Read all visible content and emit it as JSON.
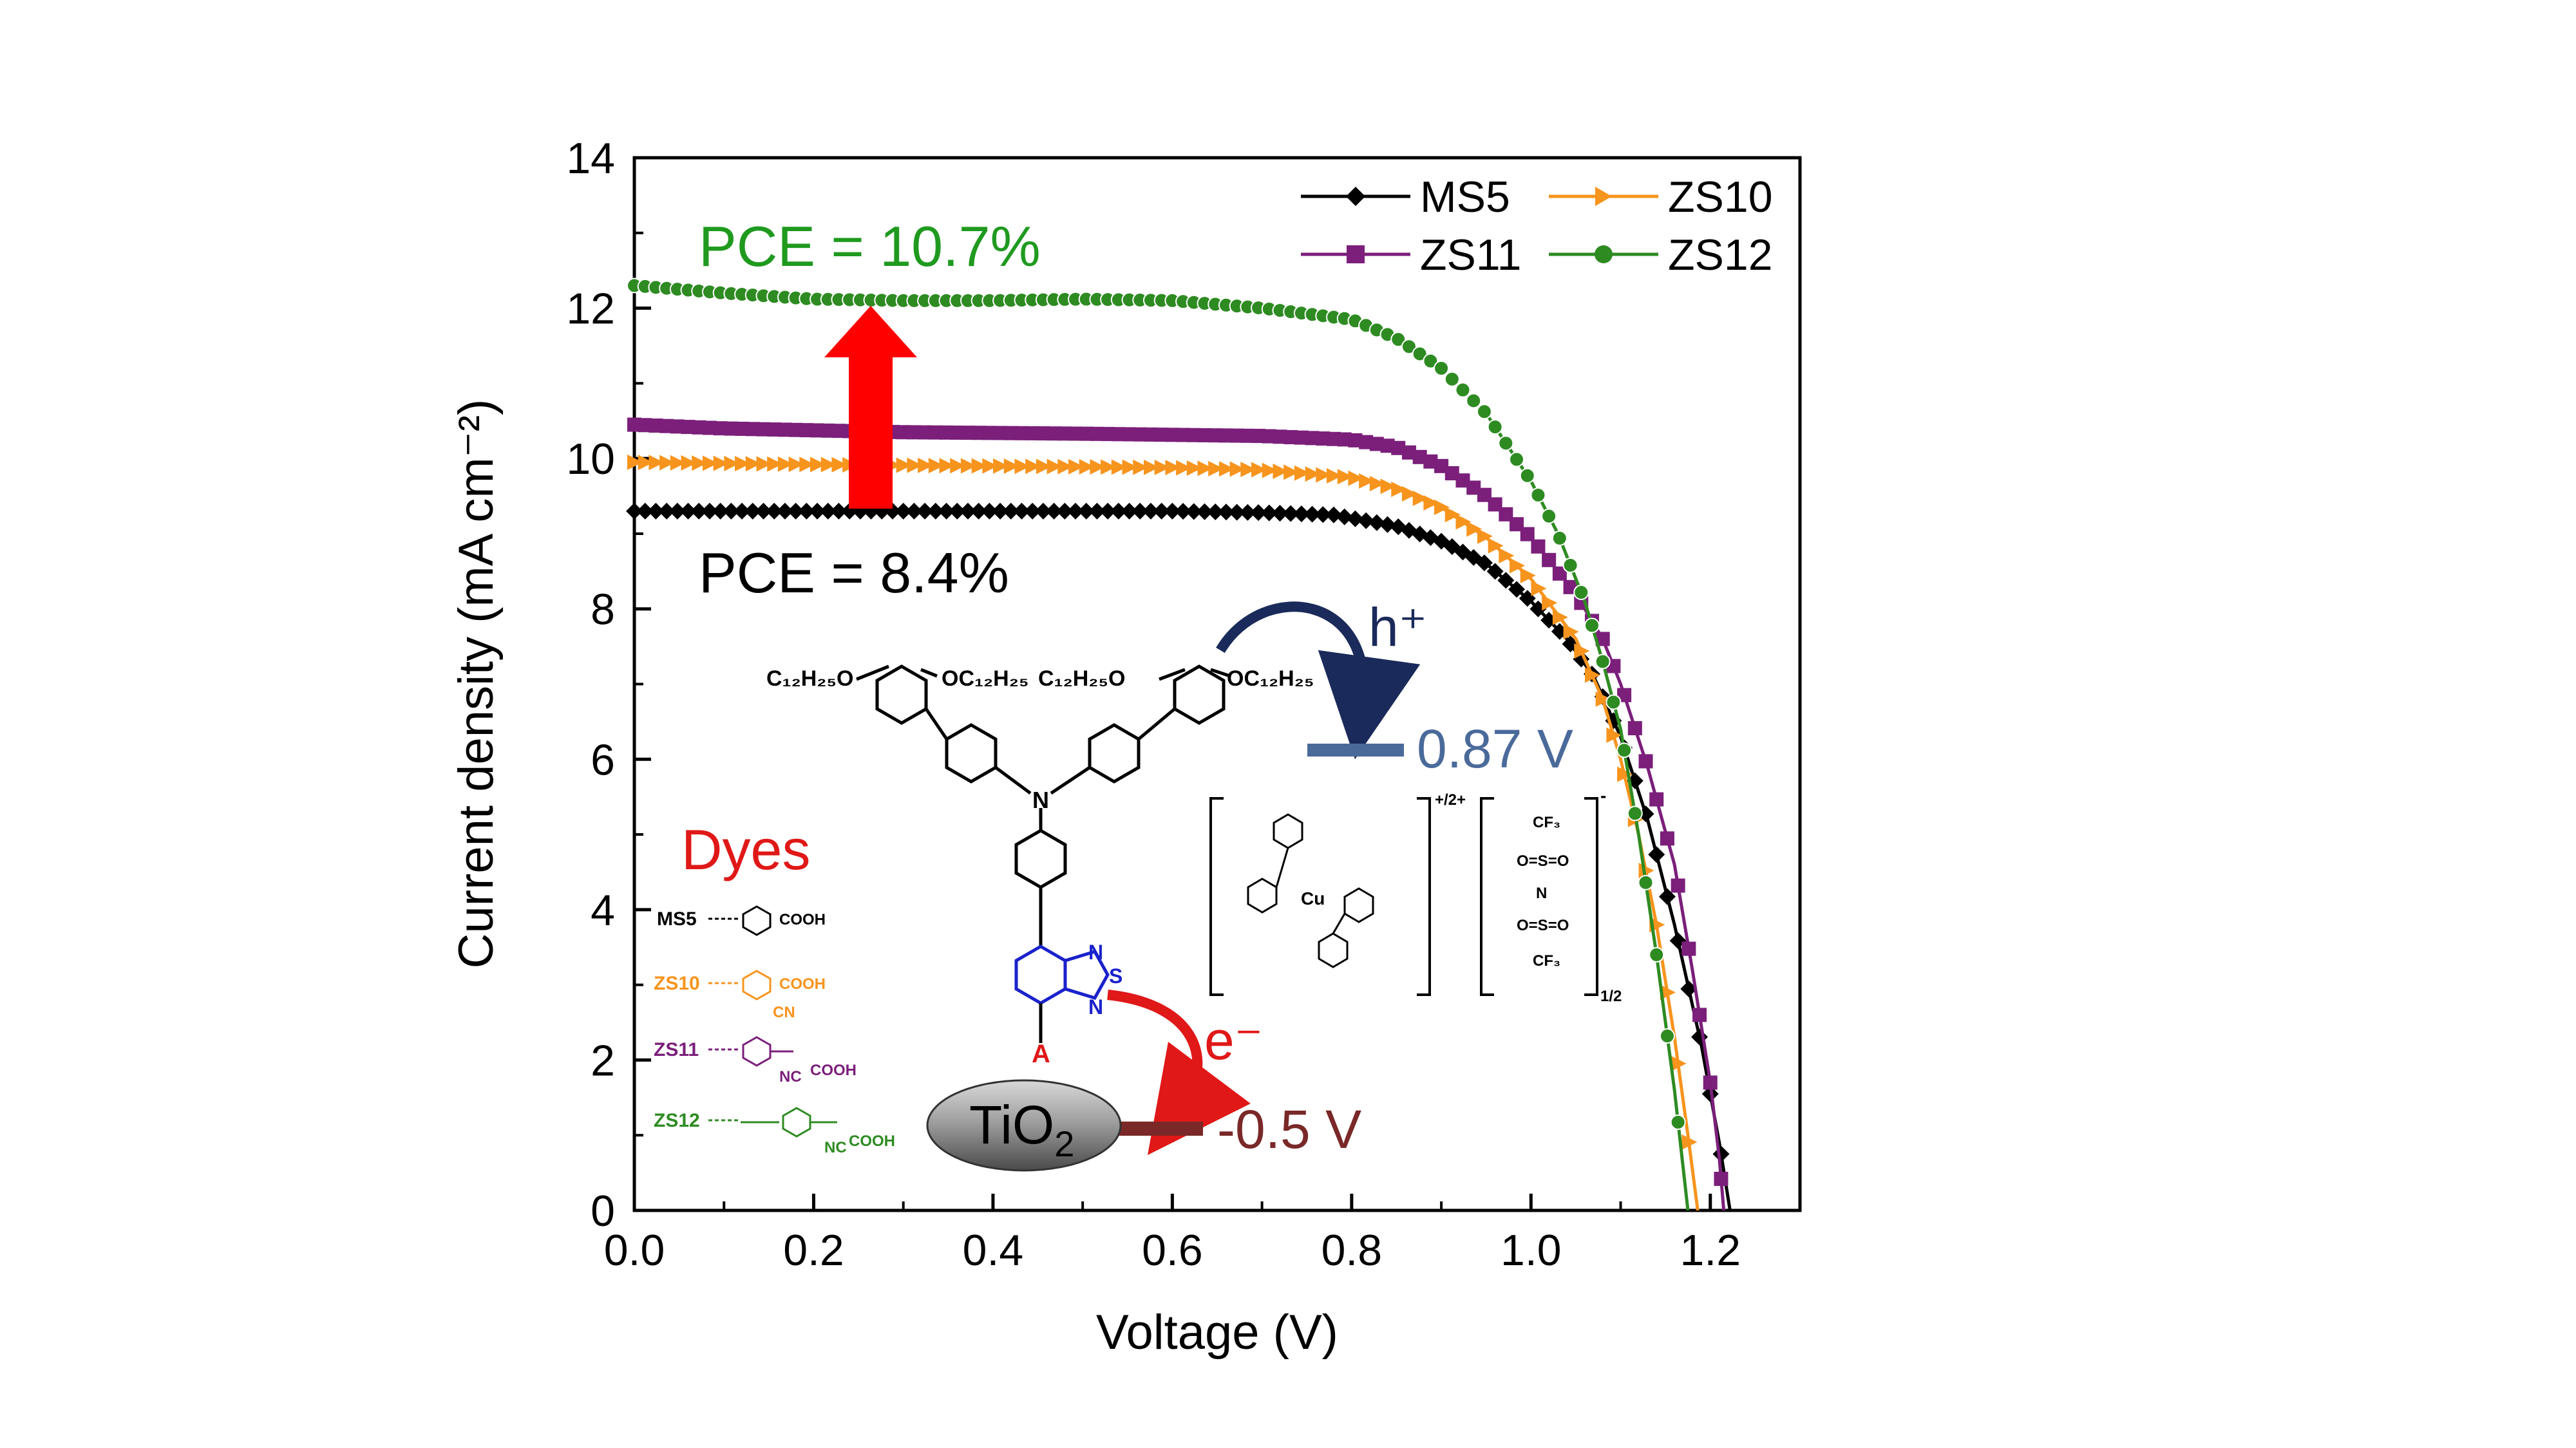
{
  "chart_data": {
    "type": "line",
    "xlabel": "Voltage (V)",
    "ylabel": "Current density (mA cm⁻²)",
    "xlim": [
      0.0,
      1.3
    ],
    "ylim": [
      0,
      14
    ],
    "x_ticks": [
      "0.0",
      "0.2",
      "0.4",
      "0.6",
      "0.8",
      "1.0",
      "1.2"
    ],
    "y_ticks": [
      "0",
      "2",
      "4",
      "6",
      "8",
      "10",
      "12",
      "14"
    ],
    "legend_position": "top-right",
    "series": [
      {
        "name": "MS5",
        "color": "#000000",
        "marker": "diamond",
        "points": [
          [
            0,
            9.3
          ],
          [
            0.2,
            9.3
          ],
          [
            0.4,
            9.3
          ],
          [
            0.6,
            9.3
          ],
          [
            0.7,
            9.28
          ],
          [
            0.78,
            9.25
          ],
          [
            0.85,
            9.1
          ],
          [
            0.9,
            8.9
          ],
          [
            0.95,
            8.6
          ],
          [
            1.0,
            8.1
          ],
          [
            1.04,
            7.6
          ],
          [
            1.07,
            7.1
          ],
          [
            1.1,
            6.3
          ],
          [
            1.13,
            5.2
          ],
          [
            1.16,
            3.8
          ],
          [
            1.19,
            2.2
          ],
          [
            1.21,
            0.9
          ],
          [
            1.222,
            0
          ]
        ]
      },
      {
        "name": "ZS10",
        "color": "#f7941d",
        "marker": "triangle-right",
        "points": [
          [
            0,
            9.95
          ],
          [
            0.2,
            9.92
          ],
          [
            0.4,
            9.9
          ],
          [
            0.6,
            9.88
          ],
          [
            0.7,
            9.85
          ],
          [
            0.8,
            9.75
          ],
          [
            0.85,
            9.6
          ],
          [
            0.9,
            9.35
          ],
          [
            0.95,
            8.95
          ],
          [
            1.0,
            8.4
          ],
          [
            1.05,
            7.6
          ],
          [
            1.08,
            6.8
          ],
          [
            1.1,
            6.0
          ],
          [
            1.12,
            5.0
          ],
          [
            1.14,
            3.8
          ],
          [
            1.16,
            2.3
          ],
          [
            1.175,
            1.0
          ],
          [
            1.186,
            0
          ]
        ]
      },
      {
        "name": "ZS11",
        "color": "#7b1f7b",
        "marker": "square",
        "points": [
          [
            0,
            10.45
          ],
          [
            0.1,
            10.4
          ],
          [
            0.3,
            10.35
          ],
          [
            0.5,
            10.33
          ],
          [
            0.7,
            10.3
          ],
          [
            0.8,
            10.25
          ],
          [
            0.85,
            10.15
          ],
          [
            0.9,
            9.9
          ],
          [
            0.95,
            9.5
          ],
          [
            1.0,
            8.95
          ],
          [
            1.05,
            8.2
          ],
          [
            1.08,
            7.6
          ],
          [
            1.1,
            7.0
          ],
          [
            1.13,
            5.9
          ],
          [
            1.16,
            4.6
          ],
          [
            1.18,
            3.2
          ],
          [
            1.2,
            1.7
          ],
          [
            1.21,
            0.7
          ],
          [
            1.215,
            0
          ]
        ]
      },
      {
        "name": "ZS12",
        "color": "#2e8b22",
        "marker": "circle",
        "points": [
          [
            0,
            12.3
          ],
          [
            0.1,
            12.2
          ],
          [
            0.2,
            12.12
          ],
          [
            0.3,
            12.1
          ],
          [
            0.4,
            12.1
          ],
          [
            0.5,
            12.12
          ],
          [
            0.6,
            12.1
          ],
          [
            0.7,
            12.0
          ],
          [
            0.8,
            11.85
          ],
          [
            0.85,
            11.6
          ],
          [
            0.9,
            11.2
          ],
          [
            0.95,
            10.6
          ],
          [
            1.0,
            9.7
          ],
          [
            1.03,
            9.0
          ],
          [
            1.06,
            8.1
          ],
          [
            1.08,
            7.3
          ],
          [
            1.1,
            6.4
          ],
          [
            1.12,
            5.0
          ],
          [
            1.14,
            3.4
          ],
          [
            1.16,
            1.6
          ],
          [
            1.175,
            0
          ]
        ]
      }
    ],
    "annotations": {
      "pce_high": "PCE = 10.7%",
      "pce_low": "PCE = 8.4%",
      "dyes_title": "Dyes",
      "dye_names": [
        "MS5",
        "ZS10",
        "ZS11",
        "ZS12"
      ],
      "dye_colors": [
        "#000000",
        "#f7941d",
        "#7b1f7b",
        "#2e8b22"
      ],
      "hole_label": "h⁺",
      "hole_level": "0.87 V",
      "electron_label": "e⁻",
      "electron_level": "-0.5 V",
      "electrode": "TiO",
      "electrode_sub": "2",
      "substituent": "OC₁₂H₂₅",
      "substituent_left": "C₁₂H₂₅O",
      "anchor_label": "A",
      "cooh": "COOH",
      "nc": "NC",
      "cn": "CN",
      "cu_label": "Cu",
      "charge_label": "+/2+",
      "stoich": "1/2",
      "cf3": "CF₃",
      "n_atom": "N",
      "s_atom": "S",
      "tfsi_so2": "O=S=O",
      "tfsi_n": "N",
      "minus": "-"
    }
  }
}
